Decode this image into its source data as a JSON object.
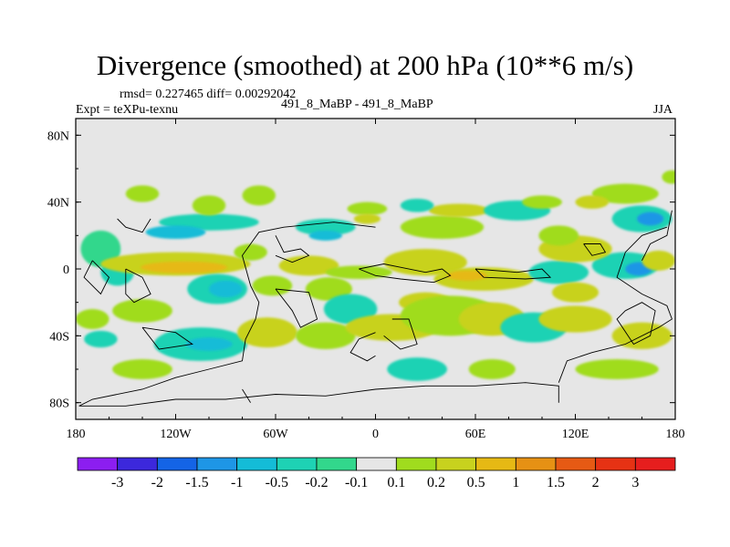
{
  "chart_data": {
    "type": "heatmap",
    "title": "Divergence (smoothed) at 200 hPa (10**6 m/s)",
    "stats": "rmsd= 0.227465 diff= 0.00292042",
    "experiment": "Expt = teXPu-texnu",
    "runs": "491_8_MaBP - 491_8_MaBP",
    "season": "JJA",
    "xlim": [
      -180,
      180
    ],
    "ylim": [
      -90,
      90
    ],
    "x_ticks": [
      {
        "value": -180,
        "label": "180"
      },
      {
        "value": -120,
        "label": "120W"
      },
      {
        "value": -60,
        "label": "60W"
      },
      {
        "value": 0,
        "label": "0"
      },
      {
        "value": 60,
        "label": "60E"
      },
      {
        "value": 120,
        "label": "120E"
      },
      {
        "value": 180,
        "label": "180"
      }
    ],
    "y_ticks": [
      {
        "value": 80,
        "label": "80N"
      },
      {
        "value": 40,
        "label": "40N"
      },
      {
        "value": 0,
        "label": "0"
      },
      {
        "value": -40,
        "label": "40S"
      },
      {
        "value": -80,
        "label": "80S"
      }
    ],
    "colorbar": {
      "labels": [
        "-3",
        "-2",
        "-1.5",
        "-1",
        "-0.5",
        "-0.2",
        "-0.1",
        "0.1",
        "0.2",
        "0.5",
        "1",
        "1.5",
        "2",
        "3"
      ],
      "colors": [
        "#8c1ef0",
        "#3c28dc",
        "#1464e6",
        "#1e96e6",
        "#14bcd7",
        "#1ed2b4",
        "#32d78c",
        "#e6e6e6",
        "#a0dc1e",
        "#c8d21e",
        "#e6b914",
        "#e69114",
        "#e65a14",
        "#e63214",
        "#e61e1e"
      ]
    },
    "regions": [
      {
        "lon": 178,
        "lat": 55,
        "rlon": 6,
        "rlat": 4,
        "c": 8
      },
      {
        "lon": -165,
        "lat": 12,
        "rlon": 12,
        "rlat": 11,
        "c": 6
      },
      {
        "lon": -155,
        "lat": -2,
        "rlon": 10,
        "rlat": 8,
        "c": 5
      },
      {
        "lon": -120,
        "lat": 3,
        "rlon": 45,
        "rlat": 7,
        "c": 9
      },
      {
        "lon": -115,
        "lat": 1,
        "rlon": 26,
        "rlat": 3.5,
        "c": 10
      },
      {
        "lon": -100,
        "lat": 28,
        "rlon": 30,
        "rlat": 5,
        "c": 5
      },
      {
        "lon": -120,
        "lat": 22,
        "rlon": 18,
        "rlat": 4,
        "c": 4
      },
      {
        "lon": -30,
        "lat": 25,
        "rlon": 18,
        "rlat": 5,
        "c": 5
      },
      {
        "lon": -30,
        "lat": 20,
        "rlon": 10,
        "rlat": 3,
        "c": 4
      },
      {
        "lon": -100,
        "lat": 38,
        "rlon": 10,
        "rlat": 6,
        "c": 8
      },
      {
        "lon": -70,
        "lat": 44,
        "rlon": 10,
        "rlat": 6,
        "c": 8
      },
      {
        "lon": -5,
        "lat": 36,
        "rlon": 12,
        "rlat": 4,
        "c": 8
      },
      {
        "lon": -5,
        "lat": 30,
        "rlon": 8,
        "rlat": 3,
        "c": 9
      },
      {
        "lon": -75,
        "lat": 10,
        "rlon": 10,
        "rlat": 5,
        "c": 8
      },
      {
        "lon": -40,
        "lat": 2,
        "rlon": 18,
        "rlat": 6,
        "c": 9
      },
      {
        "lon": -10,
        "lat": -2,
        "rlon": 20,
        "rlat": 4,
        "c": 8
      },
      {
        "lon": -95,
        "lat": -12,
        "rlon": 18,
        "rlat": 9,
        "c": 5
      },
      {
        "lon": -90,
        "lat": -12,
        "rlon": 10,
        "rlat": 5,
        "c": 4
      },
      {
        "lon": -62,
        "lat": -10,
        "rlon": 12,
        "rlat": 6,
        "c": 8
      },
      {
        "lon": -28,
        "lat": -12,
        "rlon": 14,
        "rlat": 7,
        "c": 8
      },
      {
        "lon": -15,
        "lat": -24,
        "rlon": 16,
        "rlat": 9,
        "c": 5
      },
      {
        "lon": -140,
        "lat": -25,
        "rlon": 18,
        "rlat": 7,
        "c": 8
      },
      {
        "lon": -105,
        "lat": -45,
        "rlon": 28,
        "rlat": 10,
        "c": 5
      },
      {
        "lon": -100,
        "lat": -45,
        "rlon": 14,
        "rlat": 4,
        "c": 4
      },
      {
        "lon": -65,
        "lat": -38,
        "rlon": 18,
        "rlat": 9,
        "c": 9
      },
      {
        "lon": -30,
        "lat": -40,
        "rlon": 18,
        "rlat": 8,
        "c": 8
      },
      {
        "lon": -170,
        "lat": -30,
        "rlon": 10,
        "rlat": 6,
        "c": 8
      },
      {
        "lon": -165,
        "lat": -42,
        "rlon": 10,
        "rlat": 5,
        "c": 5
      },
      {
        "lon": 10,
        "lat": -35,
        "rlon": 28,
        "rlat": 8,
        "c": 9
      },
      {
        "lon": 30,
        "lat": -20,
        "rlon": 16,
        "rlat": 6,
        "c": 9
      },
      {
        "lon": 45,
        "lat": -28,
        "rlon": 30,
        "rlat": 12,
        "c": 8
      },
      {
        "lon": 70,
        "lat": -30,
        "rlon": 20,
        "rlat": 10,
        "c": 9
      },
      {
        "lon": 95,
        "lat": -35,
        "rlon": 20,
        "rlat": 9,
        "c": 5
      },
      {
        "lon": 120,
        "lat": -30,
        "rlon": 22,
        "rlat": 8,
        "c": 9
      },
      {
        "lon": 160,
        "lat": -40,
        "rlon": 18,
        "rlat": 8,
        "c": 9
      },
      {
        "lon": 25,
        "lat": -60,
        "rlon": 18,
        "rlat": 7,
        "c": 5
      },
      {
        "lon": 70,
        "lat": -60,
        "rlon": 14,
        "rlat": 6,
        "c": 8
      },
      {
        "lon": 145,
        "lat": -60,
        "rlon": 25,
        "rlat": 6,
        "c": 8
      },
      {
        "lon": -140,
        "lat": -60,
        "rlon": 18,
        "rlat": 6,
        "c": 8
      },
      {
        "lon": 30,
        "lat": 4,
        "rlon": 25,
        "rlat": 8,
        "c": 9
      },
      {
        "lon": 65,
        "lat": -6,
        "rlon": 30,
        "rlat": 7,
        "c": 9
      },
      {
        "lon": 55,
        "lat": -4,
        "rlon": 12,
        "rlat": 3,
        "c": 10
      },
      {
        "lon": 110,
        "lat": -2,
        "rlon": 18,
        "rlat": 7,
        "c": 5
      },
      {
        "lon": 120,
        "lat": -14,
        "rlon": 14,
        "rlat": 6,
        "c": 9
      },
      {
        "lon": 150,
        "lat": 2,
        "rlon": 20,
        "rlat": 8,
        "c": 5
      },
      {
        "lon": 158,
        "lat": 0,
        "rlon": 8,
        "rlat": 4,
        "c": 3
      },
      {
        "lon": 170,
        "lat": 5,
        "rlon": 10,
        "rlat": 6,
        "c": 9
      },
      {
        "lon": 120,
        "lat": 12,
        "rlon": 22,
        "rlat": 8,
        "c": 9
      },
      {
        "lon": 110,
        "lat": 20,
        "rlon": 12,
        "rlat": 6,
        "c": 8
      },
      {
        "lon": 160,
        "lat": 30,
        "rlon": 18,
        "rlat": 8,
        "c": 5
      },
      {
        "lon": 165,
        "lat": 30,
        "rlon": 8,
        "rlat": 4,
        "c": 3
      },
      {
        "lon": 40,
        "lat": 25,
        "rlon": 25,
        "rlat": 7,
        "c": 8
      },
      {
        "lon": 50,
        "lat": 35,
        "rlon": 18,
        "rlat": 4,
        "c": 9
      },
      {
        "lon": 85,
        "lat": 35,
        "rlon": 20,
        "rlat": 6,
        "c": 5
      },
      {
        "lon": 25,
        "lat": 38,
        "rlon": 10,
        "rlat": 4,
        "c": 5
      },
      {
        "lon": 150,
        "lat": 45,
        "rlon": 20,
        "rlat": 6,
        "c": 8
      },
      {
        "lon": 130,
        "lat": 40,
        "rlon": 10,
        "rlat": 4,
        "c": 9
      },
      {
        "lon": 100,
        "lat": 40,
        "rlon": 12,
        "rlat": 4,
        "c": 8
      },
      {
        "lon": -140,
        "lat": 45,
        "rlon": 10,
        "rlat": 5,
        "c": 8
      }
    ],
    "coastlines": [
      "0,25 -25,28 -55,25 -70,22 -80,8 -75,-10 -70,-20 -72,-30 -78,-42 -80,-55 -100,-60 -120,-65 -140,-72 -170,-78 -178,-82",
      "-178,-82 -150,-82 -120,-78 -90,-78 -60,-75 -30,-76 0,-72 30,-70 60,-70 90,-68 110,-70 110,-80",
      "-80,-72 -75,-80",
      "-60,20 -55,10 -45,12 -40,8 -50,4 -60,8",
      "-60,-12 -40,-14 -35,-30 -45,-35 -50,-25 -60,-12",
      "0,-38 -10,-42 -15,-50 -5,-55 0,-52",
      "10,-30 20,-30 25,-45 15,-48 5,-40",
      "-10,0 5,3 15,1 30,-2 40,0 45,-4 35,-8 15,-6 0,-4 -10,0",
      "60,0 85,-2 100,0 105,-5 90,-6 65,-5 60,0",
      "125,15 135,15 138,10 130,8 125,15",
      "150,-25 160,-20 168,-25 165,-40 155,-45 145,-30 150,-25",
      "175,25 160,20 150,10 145,-5 160,-15 175,-22 178,-30 170,-35 150,-45 130,-50 115,-55 110,-68",
      "160,5 165,15 175,20 178,35",
      "-155,30 -150,25 -140,22 -135,30",
      "-150,0 -140,-5 -135,-15 -145,-20 -150,-15 -150,0",
      "-170,5 -160,-5 -165,-15 -175,-5 -170,5",
      "-140,-35 -120,-38 -110,-45 -130,-48 -140,-35"
    ]
  }
}
